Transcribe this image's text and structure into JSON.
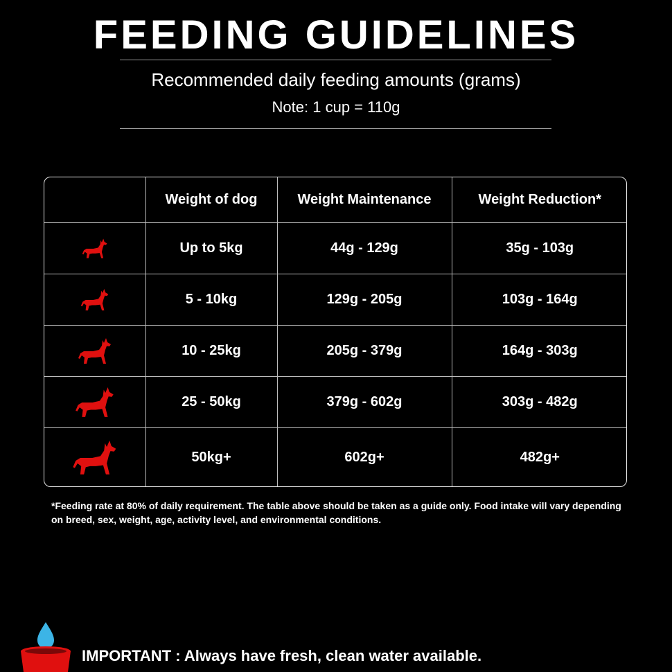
{
  "header": {
    "title": "FEEDING GUIDELINES",
    "subtitle": "Recommended daily feeding amounts (grams)",
    "note": "Note: 1 cup = 110g"
  },
  "table": {
    "columns": [
      "",
      "Weight of dog",
      "Weight Maintenance",
      "Weight Reduction*"
    ],
    "rows": [
      {
        "icon": "dog-icon",
        "weight": "Up to 5kg",
        "maintenance": "44g - 129g",
        "reduction": "35g - 103g"
      },
      {
        "icon": "dog-icon",
        "weight": "5 - 10kg",
        "maintenance": "129g - 205g",
        "reduction": "103g - 164g"
      },
      {
        "icon": "dog-icon",
        "weight": "10 - 25kg",
        "maintenance": "205g - 379g",
        "reduction": "164g - 303g"
      },
      {
        "icon": "dog-icon",
        "weight": "25 - 50kg",
        "maintenance": "379g - 602g",
        "reduction": "303g - 482g"
      },
      {
        "icon": "dog-icon",
        "weight": "50kg+",
        "maintenance": "602g+",
        "reduction": "482g+"
      }
    ]
  },
  "footnote": "*Feeding rate at 80% of daily requirement. The table above should be taken as a guide only. Food intake will vary depending on breed, sex, weight, age, activity level, and environmental conditions.",
  "important": "IMPORTANT : Always have fresh, clean water available.",
  "colors": {
    "accent": "#e0100f",
    "water": "#3cb4e6",
    "background": "#000000"
  }
}
